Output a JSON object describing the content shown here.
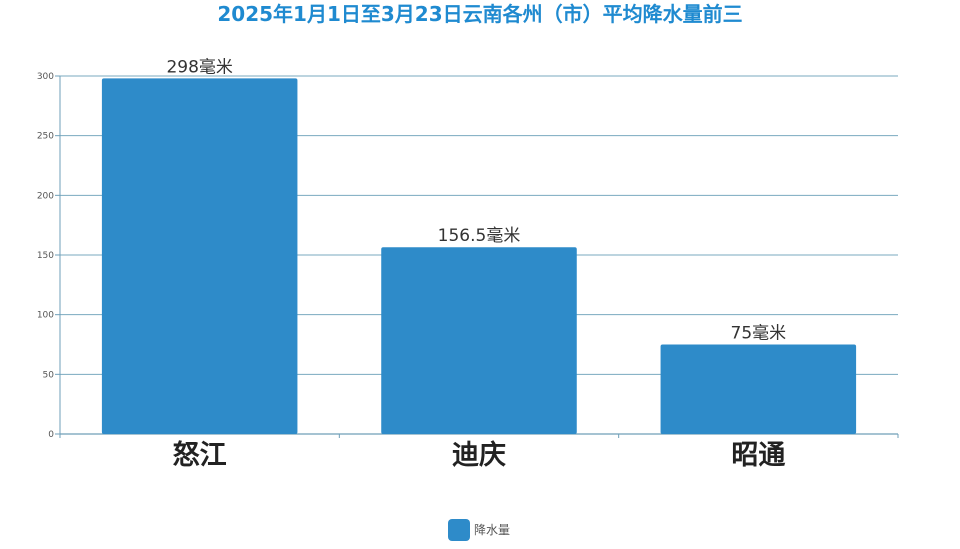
{
  "chart_data": {
    "type": "bar",
    "title": "2025年1月1日至3月23日云南各州（市）平均降水量前三",
    "categories": [
      "怒江",
      "迪庆",
      "昭通"
    ],
    "series": [
      {
        "name": "降水量",
        "values": [
          298,
          156.5,
          75
        ],
        "data_labels": [
          "298毫米",
          "156.5毫米",
          "75毫米"
        ]
      }
    ],
    "yticks": [
      0,
      50,
      100,
      150,
      200,
      250,
      300
    ],
    "ylim": [
      0,
      300
    ],
    "grid": true,
    "legend_position": "bottom-center",
    "xlabel": "",
    "ylabel": ""
  },
  "colors": {
    "title": "#1f8ad0",
    "bar": "#2e8bc9",
    "axis": "#6f9fb8",
    "gridline": "#7aa9bf",
    "tick_label": "#555555",
    "data_label": "#333333",
    "category_label": "#222222"
  }
}
